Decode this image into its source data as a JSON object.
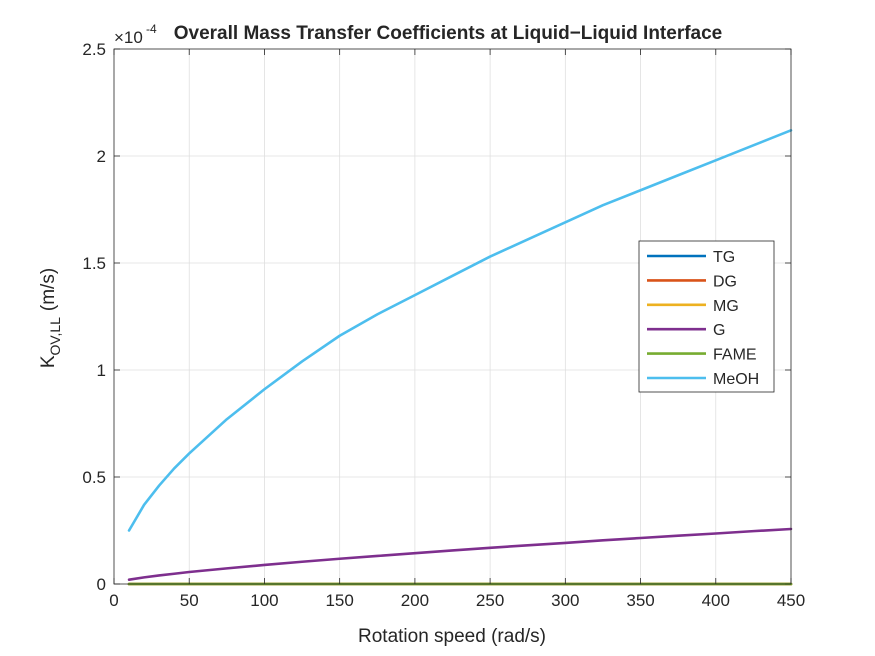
{
  "chart_data": {
    "type": "line",
    "title": "Overall Mass Transfer Coefficients at Liquid−Liquid Interface",
    "xlabel": "Rotation speed (rad/s)",
    "ylabel_main": "K",
    "ylabel_sub": "OV,LL",
    "ylabel_unit": "(m/s)",
    "y_exponent_base": "×10",
    "y_exponent": "-4",
    "xlim": [
      0,
      450
    ],
    "ylim": [
      0,
      0.00025
    ],
    "xticks": [
      0,
      50,
      100,
      150,
      200,
      250,
      300,
      350,
      400,
      450
    ],
    "xtick_labels": [
      "0",
      "50",
      "100",
      "150",
      "200",
      "250",
      "300",
      "350",
      "400",
      "450"
    ],
    "yticks": [
      0,
      5e-05,
      0.0001,
      0.00015,
      0.0002,
      0.00025
    ],
    "ytick_labels": [
      "0",
      "0.5",
      "1",
      "1.5",
      "2",
      "2.5"
    ],
    "grid": true,
    "legend_position": "right-middle",
    "x": [
      10,
      20,
      30,
      40,
      50,
      75,
      100,
      125,
      150,
      175,
      200,
      225,
      250,
      275,
      300,
      325,
      350,
      375,
      400,
      425,
      450
    ],
    "series": [
      {
        "name": "TG",
        "color": "#0072BD",
        "values": [
          0,
          0,
          0,
          0,
          0,
          0,
          0,
          0,
          0,
          0,
          0,
          0,
          0,
          0,
          0,
          0,
          0,
          0,
          0,
          0,
          0
        ]
      },
      {
        "name": "DG",
        "color": "#D95319",
        "values": [
          0,
          0,
          0,
          0,
          0,
          0,
          0,
          0,
          0,
          0,
          0,
          0,
          0,
          0,
          0,
          0,
          0,
          0,
          0,
          0,
          0
        ]
      },
      {
        "name": "MG",
        "color": "#EDB120",
        "values": [
          0,
          0,
          0,
          0,
          0,
          0,
          0,
          0,
          0,
          0,
          0,
          0,
          0,
          0,
          0,
          0,
          0,
          0,
          0,
          0,
          0
        ]
      },
      {
        "name": "G",
        "color": "#7E2F8E",
        "values": [
          2e-06,
          3.1e-06,
          4e-06,
          4.8e-06,
          5.6e-06,
          7.3e-06,
          8.9e-06,
          1.04e-05,
          1.18e-05,
          1.31e-05,
          1.44e-05,
          1.57e-05,
          1.69e-05,
          1.81e-05,
          1.92e-05,
          2.04e-05,
          2.15e-05,
          2.26e-05,
          2.36e-05,
          2.47e-05,
          2.57e-05
        ]
      },
      {
        "name": "FAME",
        "color": "#77AC30",
        "values": [
          0,
          0,
          0,
          0,
          0,
          0,
          0,
          0,
          0,
          0,
          0,
          0,
          0,
          0,
          0,
          0,
          0,
          0,
          0,
          0,
          0
        ]
      },
      {
        "name": "MeOH",
        "color": "#4DBEEE",
        "values": [
          2.5e-05,
          3.7e-05,
          4.6e-05,
          5.4e-05,
          6.1e-05,
          7.7e-05,
          9.1e-05,
          0.000104,
          0.000116,
          0.000126,
          0.000135,
          0.000144,
          0.000153,
          0.000161,
          0.000169,
          0.000177,
          0.000184,
          0.000191,
          0.000198,
          0.000205,
          0.000212
        ]
      }
    ]
  }
}
